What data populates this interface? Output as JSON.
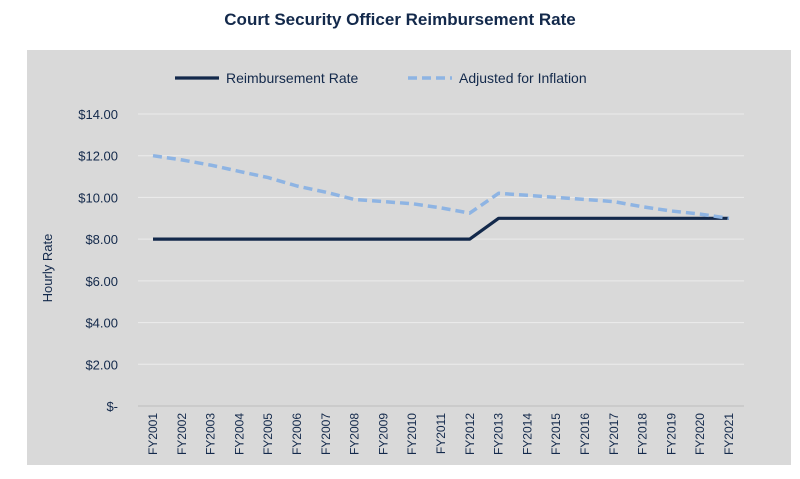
{
  "chart_data": {
    "type": "line",
    "title": "Court Security Officer Reimbursement Rate",
    "xlabel": "",
    "ylabel": "Hourly Rate",
    "categories": [
      "FY2001",
      "FY2002",
      "FY2003",
      "FY2004",
      "FY2005",
      "FY2006",
      "FY2007",
      "FY2008",
      "FY2009",
      "FY2010",
      "FY2011",
      "FY2012",
      "FY2013",
      "FY2014",
      "FY2015",
      "FY2016",
      "FY2017",
      "FY2018",
      "FY2019",
      "FY2020",
      "FY2021"
    ],
    "ylim": [
      0,
      14
    ],
    "yticks": [
      0,
      2,
      4,
      6,
      8,
      10,
      12,
      14
    ],
    "ytick_labels": [
      "$-",
      "$2.00",
      "$4.00",
      "$6.00",
      "$8.00",
      "$10.00",
      "$12.00",
      "$14.00"
    ],
    "grid": true,
    "legend": "top",
    "series": [
      {
        "name": "Reimbursement Rate",
        "style": "solid",
        "color": "#13294b",
        "values": [
          8,
          8,
          8,
          8,
          8,
          8,
          8,
          8,
          8,
          8,
          8,
          8,
          9,
          9,
          9,
          9,
          9,
          9,
          9,
          9,
          9
        ]
      },
      {
        "name": "Adjusted for Inflation",
        "style": "dashed",
        "color": "#8eb4e3",
        "values": [
          12.0,
          11.8,
          11.55,
          11.25,
          10.95,
          10.55,
          10.25,
          9.9,
          9.8,
          9.7,
          9.5,
          9.25,
          10.2,
          10.1,
          10.0,
          9.9,
          9.8,
          9.55,
          9.35,
          9.2,
          9.0
        ]
      }
    ]
  }
}
